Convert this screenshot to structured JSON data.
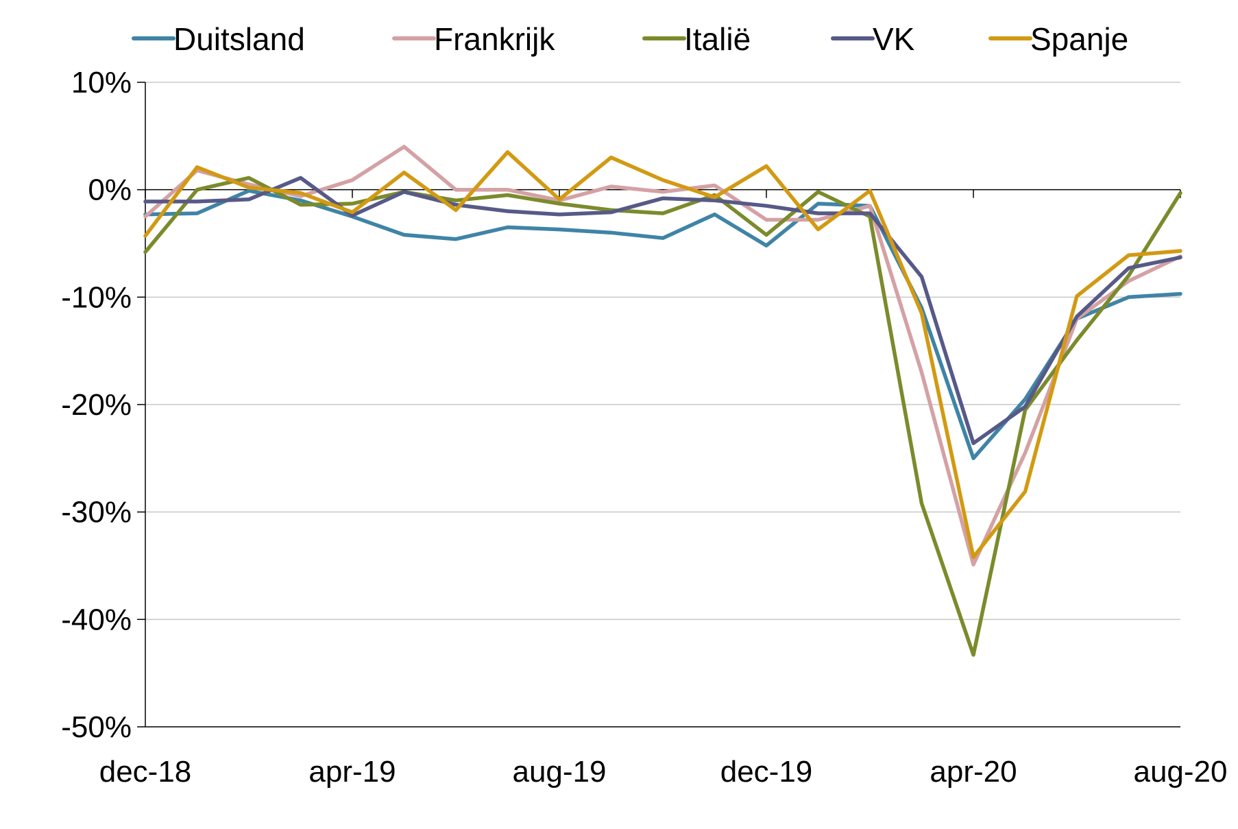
{
  "chart_data": {
    "type": "line",
    "x": [
      "dec-18",
      "jan-19",
      "feb-19",
      "mar-19",
      "apr-19",
      "mei-19",
      "jun-19",
      "jul-19",
      "aug-19",
      "sep-19",
      "okt-19",
      "nov-19",
      "dec-19",
      "jan-20",
      "feb-20",
      "mrt-20",
      "apr-20",
      "mei-20",
      "jun-20",
      "jul-20",
      "aug-20"
    ],
    "x_tick_labels": [
      "dec-18",
      "apr-19",
      "aug-19",
      "dec-19",
      "apr-20",
      "aug-20"
    ],
    "y_tick_labels": [
      "10%",
      "0%",
      "-10%",
      "-20%",
      "-30%",
      "-40%",
      "-50%"
    ],
    "ylim": [
      -50,
      10
    ],
    "y_unit": "%",
    "grid": "horizontal",
    "legend_position": "top",
    "series": [
      {
        "name": "Duitsland",
        "color": "#3f84a6",
        "values": [
          -2.3,
          -2.2,
          -0.1,
          -1.0,
          -2.5,
          -4.2,
          -4.6,
          -3.5,
          -3.7,
          -4.0,
          -4.5,
          -2.3,
          -5.2,
          -1.3,
          -1.5,
          -11.0,
          -25.0,
          -19.5,
          -12.0,
          -10.0,
          -9.7
        ]
      },
      {
        "name": "Frankrijk",
        "color": "#d4a1a5",
        "values": [
          -2.5,
          1.8,
          0.5,
          -0.6,
          0.9,
          4.0,
          0.0,
          0.0,
          -1.0,
          0.3,
          -0.2,
          0.4,
          -2.8,
          -2.8,
          -1.5,
          -17.0,
          -34.9,
          -24.5,
          -12.0,
          -8.5,
          -6.2
        ]
      },
      {
        "name": "Italië",
        "color": "#7b8b2c",
        "values": [
          -5.8,
          0.0,
          1.1,
          -1.4,
          -1.3,
          -0.2,
          -1.0,
          -0.5,
          -1.3,
          -1.9,
          -2.2,
          -0.5,
          -4.2,
          -0.2,
          -2.5,
          -29.2,
          -43.3,
          -20.5,
          -14.0,
          -8.0,
          -0.3
        ]
      },
      {
        "name": "VK",
        "color": "#575987",
        "values": [
          -1.1,
          -1.1,
          -0.9,
          1.1,
          -2.4,
          -0.2,
          -1.4,
          -2.0,
          -2.3,
          -2.1,
          -0.8,
          -1.0,
          -1.5,
          -2.2,
          -2.2,
          -8.1,
          -23.6,
          -20.2,
          -11.8,
          -7.3,
          -6.3
        ]
      },
      {
        "name": "Spanje",
        "color": "#d29a13",
        "values": [
          -4.3,
          2.1,
          0.2,
          -0.3,
          -2.1,
          1.6,
          -1.9,
          3.5,
          -0.9,
          3.0,
          0.9,
          -0.7,
          2.2,
          -3.7,
          -0.1,
          -11.5,
          -34.2,
          -28.1,
          -9.9,
          -6.1,
          -5.7
        ]
      }
    ]
  }
}
